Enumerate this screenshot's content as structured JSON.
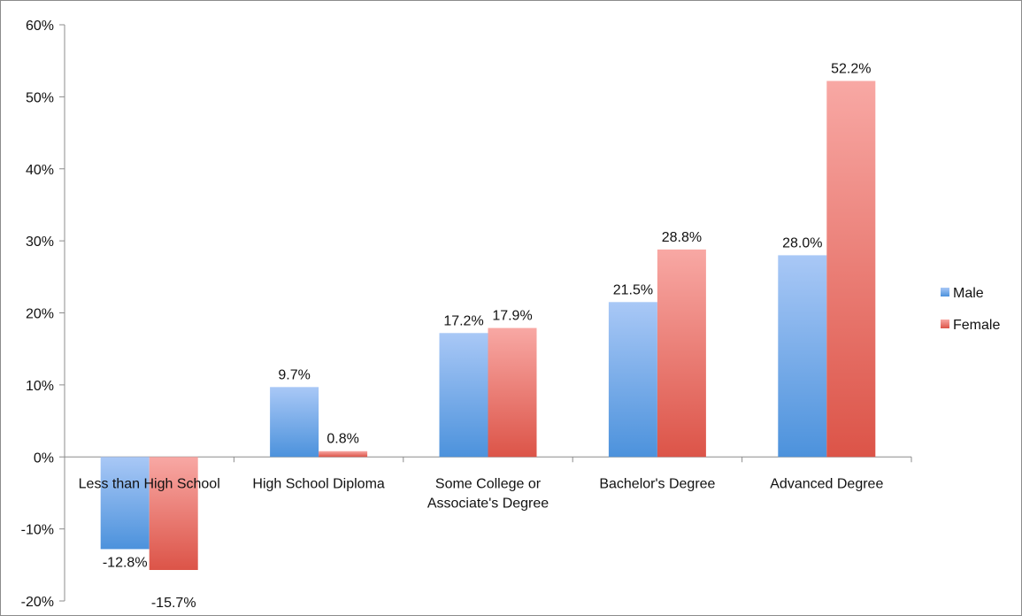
{
  "chart_data": {
    "type": "bar",
    "title": "",
    "xlabel": "",
    "ylabel": "",
    "ylim": [
      -20,
      60
    ],
    "ytick_step": 10,
    "ytick_format": "percent",
    "grid": false,
    "legend": "right",
    "categories": [
      [
        "Less than High School"
      ],
      [
        "High School Diploma"
      ],
      [
        "Some College or",
        "Associate's Degree"
      ],
      [
        "Bachelor's Degree"
      ],
      [
        "Advanced Degree"
      ]
    ],
    "series": [
      {
        "name": "Male",
        "values": [
          -12.8,
          9.7,
          17.2,
          21.5,
          28.0
        ],
        "labels": [
          "-12.8%",
          "9.7%",
          "17.2%",
          "21.5%",
          "28.0%"
        ],
        "color_top": "#a9c8f6",
        "color_bottom": "#4c92dc"
      },
      {
        "name": "Female",
        "values": [
          -15.7,
          0.8,
          17.9,
          28.8,
          52.2
        ],
        "labels": [
          "-15.7%",
          "0.8%",
          "17.9%",
          "28.8%",
          "52.2%"
        ],
        "color_top": "#f8a8a4",
        "color_bottom": "#dc5448"
      }
    ]
  }
}
